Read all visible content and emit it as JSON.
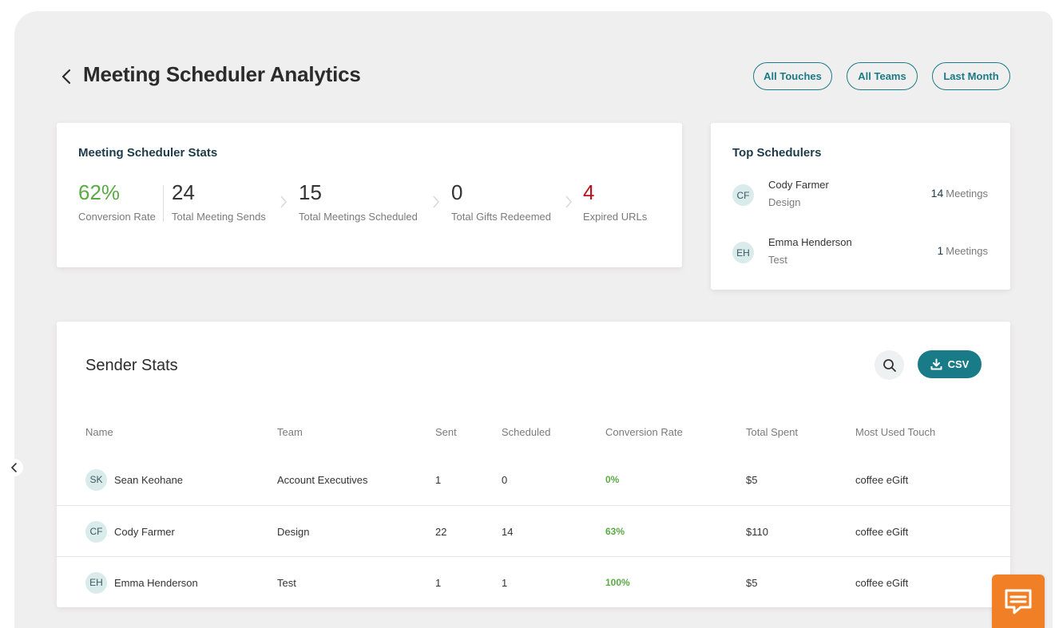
{
  "header": {
    "title": "Meeting Scheduler Analytics",
    "filters": {
      "touches": "All Touches",
      "teams": "All Teams",
      "period": "Last Month"
    }
  },
  "stats": {
    "title": "Meeting Scheduler Stats",
    "items": [
      {
        "value": "62%",
        "label": "Conversion Rate"
      },
      {
        "value": "24",
        "label": "Total Meeting Sends"
      },
      {
        "value": "15",
        "label": "Total Meetings Scheduled"
      },
      {
        "value": "0",
        "label": "Total Gifts Redeemed"
      },
      {
        "value": "4",
        "label": "Expired URLs"
      }
    ]
  },
  "top_schedulers": {
    "title": "Top Schedulers",
    "items": [
      {
        "initials": "CF",
        "name": "Cody Farmer",
        "team": "Design",
        "count": "14",
        "unit": "Meetings"
      },
      {
        "initials": "EH",
        "name": "Emma Henderson",
        "team": "Test",
        "count": "1",
        "unit": "Meetings"
      }
    ]
  },
  "sender_stats": {
    "title": "Sender Stats",
    "csv_label": "CSV",
    "columns": [
      "Name",
      "Team",
      "Sent",
      "Scheduled",
      "Conversion Rate",
      "Total Spent",
      "Most Used Touch"
    ],
    "rows": [
      {
        "initials": "SK",
        "name": "Sean Keohane",
        "team": "Account Executives",
        "sent": "1",
        "scheduled": "0",
        "rate": "0%",
        "spent": "$5",
        "touch": "coffee eGift"
      },
      {
        "initials": "CF",
        "name": "Cody Farmer",
        "team": "Design",
        "sent": "22",
        "scheduled": "14",
        "rate": "63%",
        "spent": "$110",
        "touch": "coffee eGift"
      },
      {
        "initials": "EH",
        "name": "Emma Henderson",
        "team": "Test",
        "sent": "1",
        "scheduled": "1",
        "rate": "100%",
        "spent": "$5",
        "touch": "coffee eGift"
      }
    ]
  },
  "colors": {
    "accent": "#1a7b88",
    "positive": "#5aaa45",
    "negative": "#b8141d",
    "chat": "#f07f26"
  }
}
